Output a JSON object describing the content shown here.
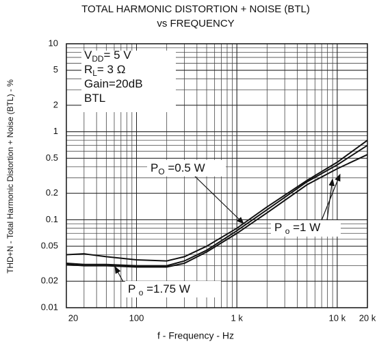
{
  "chart_data": {
    "type": "line",
    "title": [
      "TOTAL HARMONIC DISTORTION + NOISE (BTL)",
      "vs FREQUENCY"
    ],
    "x_label": "f - Frequency - Hz",
    "y_label": "THD+N - Total Harmonic Distortion + Noise (BTL) - %",
    "log_x": true,
    "log_y": true,
    "grid": true,
    "minor_grid": true,
    "xlim": [
      20,
      20000
    ],
    "xticks": [
      20,
      100,
      {
        "value": 1000,
        "label": "1 k"
      },
      {
        "value": 10000,
        "label": "10 k"
      },
      {
        "value": 20000,
        "label": "20 k"
      }
    ],
    "ylim": [
      0.01,
      10
    ],
    "yticks": [
      0.01,
      0.02,
      0.05,
      0.1,
      0.2,
      0.5,
      1,
      2,
      5,
      10
    ],
    "x": [
      20,
      30,
      50,
      100,
      200,
      300,
      500,
      1000,
      2000,
      5000,
      10000,
      20000
    ],
    "series": [
      {
        "color": "#111111",
        "values": [
          0.04,
          0.041,
          0.038,
          0.035,
          0.034,
          0.038,
          0.05,
          0.08,
          0.14,
          0.28,
          0.45,
          0.8
        ]
      },
      {
        "color": "#111111",
        "values": [
          0.032,
          0.031,
          0.031,
          0.03,
          0.03,
          0.034,
          0.045,
          0.075,
          0.13,
          0.27,
          0.42,
          0.7
        ]
      },
      {
        "color": "#111111",
        "values": [
          0.031,
          0.03,
          0.03,
          0.029,
          0.029,
          0.032,
          0.043,
          0.07,
          0.12,
          0.25,
          0.38,
          0.55
        ]
      }
    ],
    "conditions": [
      {
        "main": "V",
        "sub": "DD",
        "rest": "= 5 V"
      },
      {
        "main": "R",
        "sub": "L",
        "rest": "= 3 Ω"
      },
      {
        "main": "Gain=20dB"
      },
      {
        "main": "BTL"
      }
    ],
    "annotations": [
      {
        "main": "P",
        "sub": "O",
        "rest": " =0.5 W"
      },
      {
        "main": "P ",
        "sub": "o",
        "rest": " =1 W"
      },
      {
        "main": "P ",
        "sub": "o",
        "rest": " =1.75 W"
      }
    ]
  }
}
